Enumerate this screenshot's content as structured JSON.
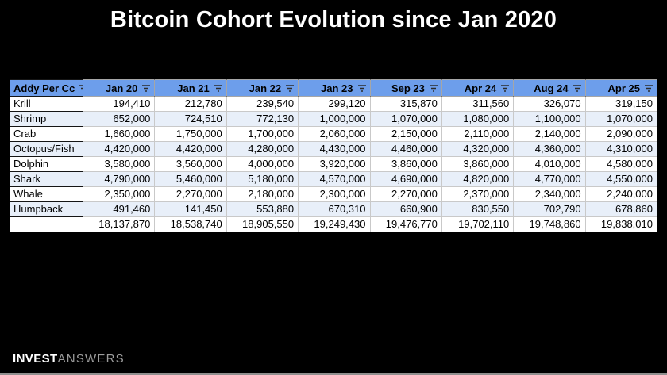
{
  "slide": {
    "title": "Bitcoin Cohort Evolution since Jan 2020",
    "logo": {
      "bold": "INVEST",
      "light": "ANSWERS"
    }
  },
  "table": {
    "corner_header": "Addy Per Cc",
    "filter_icon": "filter-icon",
    "columns": [
      "Jan 20",
      "Jan 21",
      "Jan 22",
      "Jan 23",
      "Sep 23",
      "Apr 24",
      "Aug 24",
      "Apr 25"
    ],
    "rows": [
      {
        "label": "Krill",
        "values": [
          "194,410",
          "212,780",
          "239,540",
          "299,120",
          "315,870",
          "311,560",
          "326,070",
          "319,150"
        ]
      },
      {
        "label": "Shrimp",
        "values": [
          "652,000",
          "724,510",
          "772,130",
          "1,000,000",
          "1,070,000",
          "1,080,000",
          "1,100,000",
          "1,070,000"
        ]
      },
      {
        "label": "Crab",
        "values": [
          "1,660,000",
          "1,750,000",
          "1,700,000",
          "2,060,000",
          "2,150,000",
          "2,110,000",
          "2,140,000",
          "2,090,000"
        ]
      },
      {
        "label": "Octopus/Fish",
        "values": [
          "4,420,000",
          "4,420,000",
          "4,280,000",
          "4,430,000",
          "4,460,000",
          "4,320,000",
          "4,360,000",
          "4,310,000"
        ]
      },
      {
        "label": "Dolphin",
        "values": [
          "3,580,000",
          "3,560,000",
          "4,000,000",
          "3,920,000",
          "3,860,000",
          "3,860,000",
          "4,010,000",
          "4,580,000"
        ]
      },
      {
        "label": "Shark",
        "values": [
          "4,790,000",
          "5,460,000",
          "5,180,000",
          "4,570,000",
          "4,690,000",
          "4,820,000",
          "4,770,000",
          "4,550,000"
        ]
      },
      {
        "label": "Whale",
        "values": [
          "2,350,000",
          "2,270,000",
          "2,180,000",
          "2,300,000",
          "2,270,000",
          "2,370,000",
          "2,340,000",
          "2,240,000"
        ]
      },
      {
        "label": "Humpback",
        "values": [
          "491,460",
          "141,450",
          "553,880",
          "670,310",
          "660,900",
          "830,550",
          "702,790",
          "678,860"
        ]
      }
    ],
    "totals": [
      "18,137,870",
      "18,538,740",
      "18,905,550",
      "19,249,430",
      "19,476,770",
      "19,702,110",
      "19,748,860",
      "19,838,010"
    ]
  },
  "chart_data": {
    "type": "table",
    "title": "Bitcoin Cohort Evolution since Jan 2020",
    "categories": [
      "Jan 20",
      "Jan 21",
      "Jan 22",
      "Jan 23",
      "Sep 23",
      "Apr 24",
      "Aug 24",
      "Apr 25"
    ],
    "series": [
      {
        "name": "Krill",
        "values": [
          194410,
          212780,
          239540,
          299120,
          315870,
          311560,
          326070,
          319150
        ]
      },
      {
        "name": "Shrimp",
        "values": [
          652000,
          724510,
          772130,
          1000000,
          1070000,
          1080000,
          1100000,
          1070000
        ]
      },
      {
        "name": "Crab",
        "values": [
          1660000,
          1750000,
          1700000,
          2060000,
          2150000,
          2110000,
          2140000,
          2090000
        ]
      },
      {
        "name": "Octopus/Fish",
        "values": [
          4420000,
          4420000,
          4280000,
          4430000,
          4460000,
          4320000,
          4360000,
          4310000
        ]
      },
      {
        "name": "Dolphin",
        "values": [
          3580000,
          3560000,
          4000000,
          3920000,
          3860000,
          3860000,
          4010000,
          4580000
        ]
      },
      {
        "name": "Shark",
        "values": [
          4790000,
          5460000,
          5180000,
          4570000,
          4690000,
          4820000,
          4770000,
          4550000
        ]
      },
      {
        "name": "Whale",
        "values": [
          2350000,
          2270000,
          2180000,
          2300000,
          2270000,
          2370000,
          2340000,
          2240000
        ]
      },
      {
        "name": "Humpback",
        "values": [
          491460,
          141450,
          553880,
          670310,
          660900,
          830550,
          702790,
          678860
        ]
      }
    ],
    "totals": [
      18137870,
      18538740,
      18905550,
      19249430,
      19476770,
      19702110,
      19748860,
      19838010
    ]
  },
  "colors": {
    "background": "#000000",
    "title_text": "#ffffff",
    "header_blue": "#6d9eeb",
    "alt_row_blue": "#e8eff9"
  }
}
